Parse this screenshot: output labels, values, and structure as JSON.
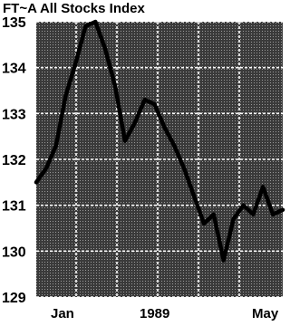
{
  "chart_data": {
    "type": "line",
    "title": "FT~A All Stocks Index",
    "xlabel": "",
    "ylabel": "",
    "ylim": [
      129,
      135
    ],
    "yticks": [
      129,
      130,
      131,
      132,
      133,
      134,
      135
    ],
    "x_tick_labels": [
      "Jan",
      "1989",
      "May"
    ],
    "grid": true,
    "legend": "none",
    "colors": {
      "background": "#ffffff",
      "plot_fill": "#4a4a4a",
      "grid": "#ffffff",
      "line": "#000000"
    },
    "series": [
      {
        "values": [
          131.5,
          131.8,
          132.3,
          133.4,
          134.1,
          134.9,
          135.0,
          134.4,
          133.6,
          132.4,
          132.8,
          133.3,
          133.2,
          132.7,
          132.3,
          131.8,
          131.2,
          130.6,
          130.8,
          129.8,
          130.7,
          131.0,
          130.8,
          131.4,
          130.8,
          130.9
        ]
      }
    ]
  }
}
